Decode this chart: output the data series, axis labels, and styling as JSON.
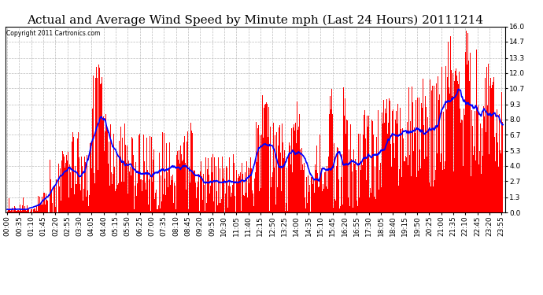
{
  "title": "Actual and Average Wind Speed by Minute mph (Last 24 Hours) 20111214",
  "copyright": "Copyright 2011 Cartronics.com",
  "yticks": [
    0.0,
    1.3,
    2.7,
    4.0,
    5.3,
    6.7,
    8.0,
    9.3,
    10.7,
    12.0,
    13.3,
    14.7,
    16.0
  ],
  "ylim": [
    0.0,
    16.0
  ],
  "bar_color": "#FF0000",
  "line_color": "#0000FF",
  "background_color": "#FFFFFF",
  "grid_color": "#BBBBBB",
  "title_fontsize": 11,
  "tick_fontsize": 6.5,
  "bar_width": 1.0,
  "label_interval": 7,
  "n_points": 1440
}
